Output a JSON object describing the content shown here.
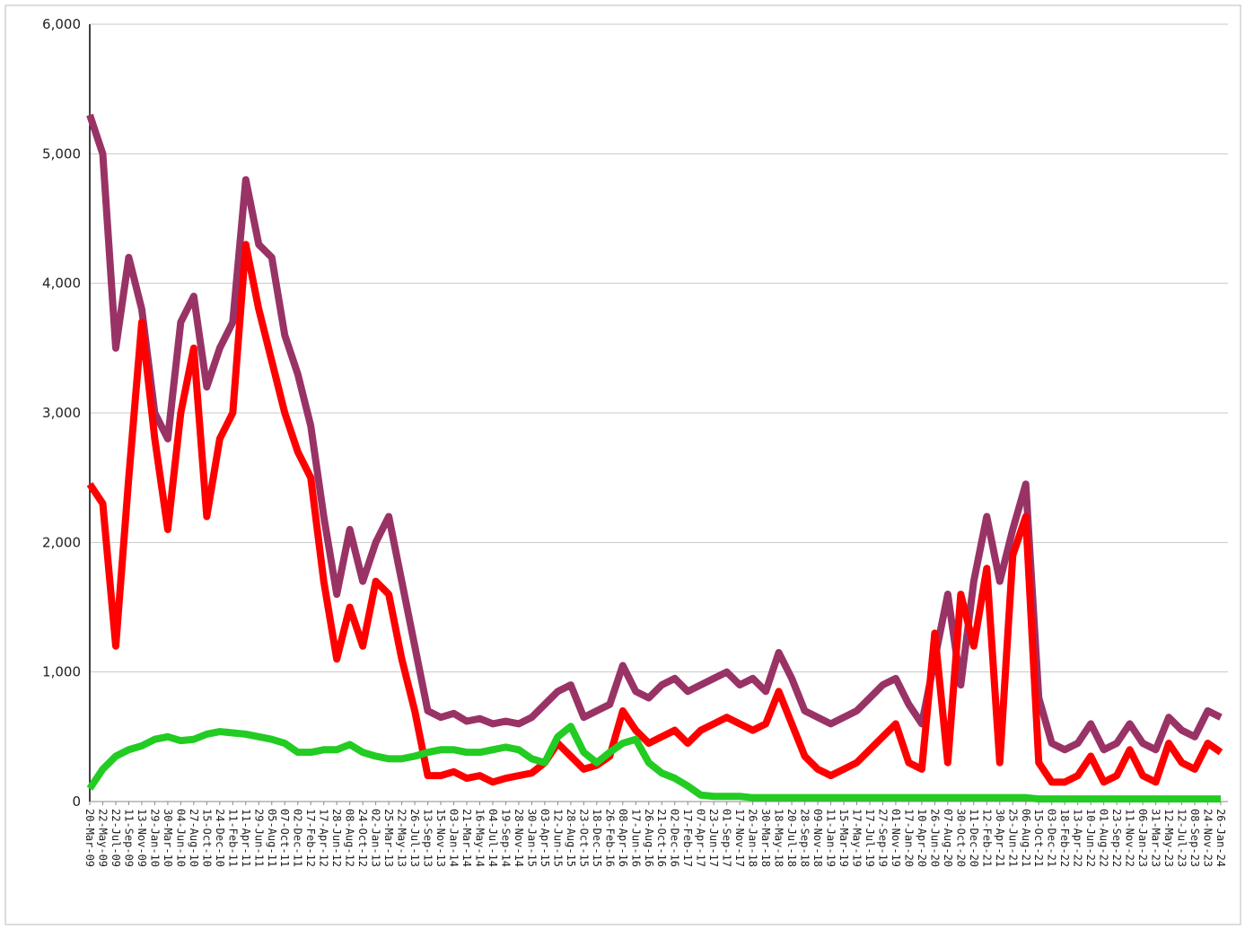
{
  "chart_data": {
    "type": "line",
    "categories": [
      "20-Mar-09",
      "22-May-09",
      "22-Jul-09",
      "11-Sep-09",
      "13-Nov-09",
      "29-Jan-10",
      "30-Mar-10",
      "04-Jun-10",
      "27-Aug-10",
      "15-Oct-10",
      "24-Dec-10",
      "11-Feb-11",
      "11-Apr-11",
      "29-Jun-11",
      "05-Aug-11",
      "07-Oct-11",
      "02-Dec-11",
      "17-Feb-12",
      "17-Apr-12",
      "28-Jun-12",
      "08-Aug-12",
      "24-Oct-12",
      "02-Jan-13",
      "25-Mar-13",
      "22-May-13",
      "26-Jul-13",
      "13-Sep-13",
      "15-Nov-13",
      "03-Jan-14",
      "21-Mar-14",
      "16-May-14",
      "04-Jul-14",
      "19-Sep-14",
      "28-Nov-14",
      "30-Jan-15",
      "03-Apr-15",
      "12-Jun-15",
      "28-Aug-15",
      "23-Oct-15",
      "18-Dec-15",
      "26-Feb-16",
      "08-Apr-16",
      "17-Jun-16",
      "26-Aug-16",
      "21-Oct-16",
      "02-Dec-16",
      "17-Feb-17",
      "07-Apr-17",
      "23-Jun-17",
      "01-Sep-17",
      "17-Nov-17",
      "26-Jan-18",
      "30-Mar-18",
      "18-May-18",
      "20-Jul-18",
      "28-Sep-18",
      "09-Nov-18",
      "11-Jan-19",
      "15-Mar-19",
      "17-May-19",
      "17-Jul-19",
      "27-Sep-19",
      "01-Nov-19",
      "17-Jan-20",
      "10-Apr-20",
      "26-Jun-20",
      "07-Aug-20",
      "30-Oct-20",
      "11-Dec-20",
      "12-Feb-21",
      "30-Apr-21",
      "25-Jun-21",
      "06-Aug-21",
      "15-Oct-21",
      "03-Dec-21",
      "18-Feb-22",
      "13-Apr-22",
      "10-Jun-22",
      "01-Aug-22",
      "23-Sep-22",
      "11-Nov-22",
      "06-Jan-23",
      "31-Mar-23",
      "12-May-23",
      "12-Jul-23",
      "08-Sep-23",
      "24-Nov-23",
      "26-Jan-24"
    ],
    "series": [
      {
        "color": "#993366",
        "values": [
          5300,
          5000,
          3500,
          4200,
          3800,
          3000,
          2800,
          3700,
          3900,
          3200,
          3500,
          3700,
          4800,
          4300,
          4200,
          3600,
          3300,
          2900,
          2200,
          1600,
          2100,
          1700,
          2000,
          2200,
          1700,
          1200,
          700,
          650,
          680,
          620,
          640,
          600,
          620,
          600,
          650,
          750,
          850,
          900,
          650,
          700,
          750,
          1050,
          850,
          800,
          900,
          950,
          850,
          900,
          950,
          1000,
          900,
          950,
          850,
          1150,
          950,
          700,
          650,
          600,
          650,
          700,
          800,
          900,
          950,
          750,
          600,
          1100,
          1600,
          900,
          1700,
          2200,
          1700,
          2100,
          2450,
          800,
          450,
          400,
          450,
          600,
          400,
          450,
          600,
          450,
          400,
          650,
          550,
          500,
          700,
          650
        ]
      },
      {
        "color": "#ff0000",
        "values": [
          2450,
          2300,
          1200,
          2500,
          3700,
          2800,
          2100,
          3000,
          3500,
          2200,
          2800,
          3000,
          4300,
          3800,
          3400,
          3000,
          2700,
          2500,
          1700,
          1100,
          1500,
          1200,
          1700,
          1600,
          1100,
          700,
          200,
          200,
          230,
          180,
          200,
          150,
          180,
          200,
          220,
          300,
          450,
          350,
          250,
          280,
          350,
          700,
          550,
          450,
          500,
          550,
          450,
          550,
          600,
          650,
          600,
          550,
          600,
          850,
          600,
          350,
          250,
          200,
          250,
          300,
          400,
          500,
          600,
          300,
          250,
          1300,
          300,
          1600,
          1200,
          1800,
          300,
          1900,
          2200,
          300,
          150,
          150,
          200,
          350,
          150,
          200,
          400,
          200,
          150,
          450,
          300,
          250,
          450,
          380
        ]
      },
      {
        "color": "#22cc22",
        "values": [
          100,
          250,
          350,
          400,
          430,
          480,
          500,
          470,
          480,
          520,
          540,
          530,
          520,
          500,
          480,
          450,
          380,
          380,
          400,
          400,
          440,
          380,
          350,
          330,
          330,
          350,
          380,
          400,
          400,
          380,
          380,
          400,
          420,
          400,
          330,
          300,
          500,
          580,
          380,
          300,
          380,
          450,
          480,
          300,
          220,
          180,
          120,
          50,
          40,
          40,
          40,
          30,
          30,
          30,
          30,
          30,
          30,
          30,
          30,
          30,
          30,
          30,
          30,
          30,
          30,
          30,
          30,
          30,
          30,
          30,
          30,
          30,
          30,
          20,
          20,
          20,
          20,
          20,
          20,
          20,
          20,
          20,
          20,
          20,
          20,
          20,
          20,
          20
        ]
      }
    ],
    "ylim": [
      0,
      6000
    ],
    "yticks": [
      0,
      {
        "value": 1000,
        "label": "1,000"
      },
      {
        "value": 2000,
        "label": "2,000"
      },
      {
        "value": 3000,
        "label": "3,000"
      },
      {
        "value": 4000,
        "label": "4,000"
      },
      {
        "value": 5000,
        "label": "5,000"
      },
      {
        "value": 6000,
        "label": "6,000"
      }
    ],
    "grid": true
  }
}
